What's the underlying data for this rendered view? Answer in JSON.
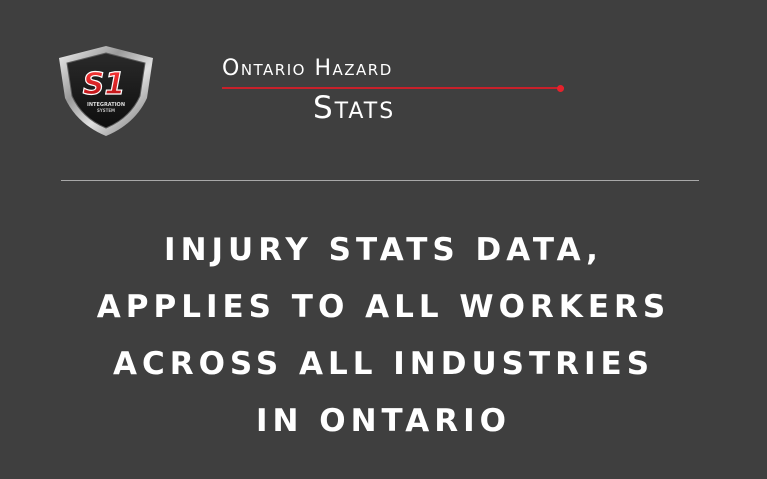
{
  "logo": {
    "icon": "shield-logo-icon",
    "main_text": "S1",
    "sub_text_1": "INTEGRATION",
    "sub_text_2": "SYSTEM"
  },
  "header": {
    "title_line1": "Ontario Hazard",
    "title_line2": "Stats"
  },
  "message": {
    "lines": [
      "INJURY STATS DATA,",
      "APPLIES TO ALL WORKERS",
      "ACROSS ALL INDUSTRIES",
      "IN ONTARIO"
    ]
  },
  "colors": {
    "background": "#3f3f3f",
    "accent_red": "#c8202a",
    "text": "#ffffff",
    "divider": "#a8a8a8"
  }
}
